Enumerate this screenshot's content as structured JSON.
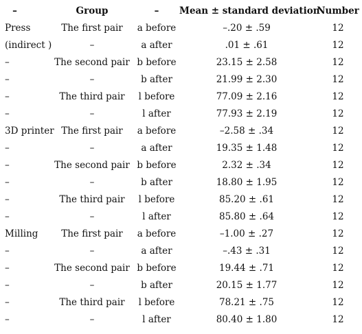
{
  "table": {
    "headers": [
      "–",
      "Group",
      "–",
      "Mean ± standard deviation",
      "Number"
    ],
    "rows": [
      [
        "Press",
        "The first pair",
        "a before",
        "–.20 ± .59",
        "12"
      ],
      [
        "(indirect )",
        "–",
        "a after",
        ".01 ± .61",
        "12"
      ],
      [
        "–",
        "The second pair",
        "b before",
        "23.15 ± 2.58",
        "12"
      ],
      [
        "–",
        "–",
        "b after",
        "21.99 ± 2.30",
        "12"
      ],
      [
        "–",
        "The third pair",
        "l before",
        "77.09 ± 2.16",
        "12"
      ],
      [
        "–",
        "–",
        "l after",
        "77.93 ± 2.19",
        "12"
      ],
      [
        "3D printer",
        "The first pair",
        "a before",
        "–2.58 ± .34",
        "12"
      ],
      [
        "–",
        "–",
        "a after",
        "19.35 ± 1.48",
        "12"
      ],
      [
        "–",
        "The second pair",
        "b before",
        "2.32 ± .34",
        "12"
      ],
      [
        "–",
        "–",
        "b after",
        "18.80 ± 1.95",
        "12"
      ],
      [
        "–",
        "The third pair",
        "l before",
        "85.20 ± .61",
        "12"
      ],
      [
        "–",
        "–",
        "l after",
        "85.80 ± .64",
        "12"
      ],
      [
        "Milling",
        "The first pair",
        "a before",
        "–1.00 ± .27",
        "12"
      ],
      [
        "–",
        "–",
        "a after",
        "–.43 ± .31",
        "12"
      ],
      [
        "–",
        "The second pair",
        "b before",
        "19.44 ± .71",
        "12"
      ],
      [
        "–",
        "–",
        "b after",
        "20.15 ± 1.77",
        "12"
      ],
      [
        "–",
        "The third pair",
        "l before",
        "78.21 ± .75",
        "12"
      ],
      [
        "–",
        "–",
        "l after",
        "80.40 ± 1.80",
        "12"
      ]
    ]
  }
}
